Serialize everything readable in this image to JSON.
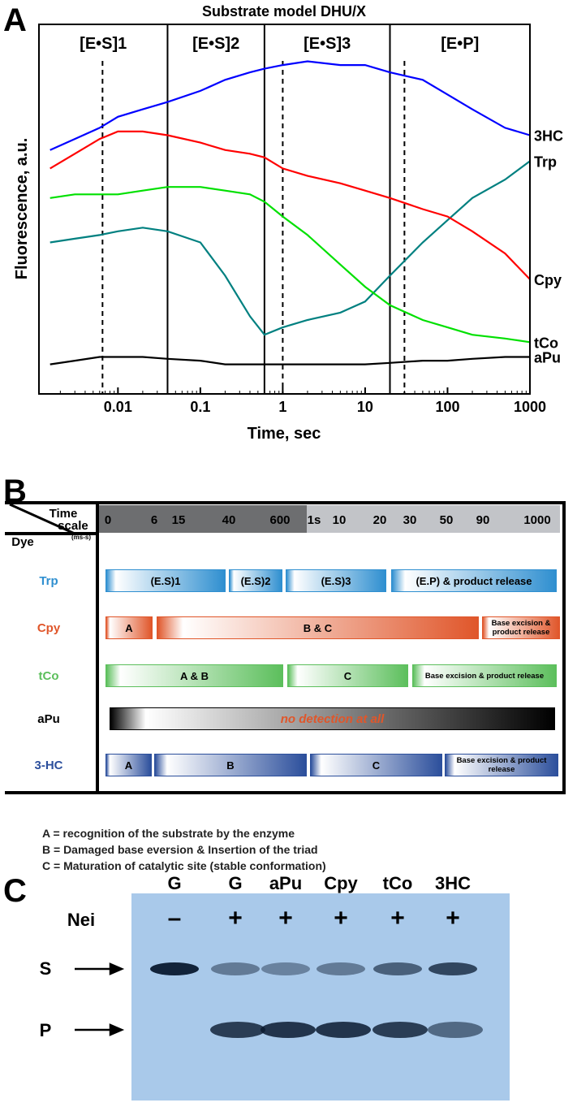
{
  "chart_data": {
    "type": "line",
    "panel": "A",
    "title": "Substrate model DHU/X",
    "xlabel": "Time, sec",
    "ylabel": "Fluorescence, a.u.",
    "xscale": "log",
    "xlim": [
      0.0011,
      1000
    ],
    "xticks": [
      0.01,
      0.1,
      1,
      10,
      100,
      1000
    ],
    "ylim": [
      0,
      100
    ],
    "x": [
      0.0015,
      0.003,
      0.006,
      0.01,
      0.02,
      0.04,
      0.1,
      0.2,
      0.4,
      0.6,
      1,
      2,
      5,
      10,
      20,
      50,
      100,
      200,
      500,
      1000
    ],
    "series": [
      {
        "name": "3HC",
        "color": "#0000ff",
        "values": [
          66,
          69,
          72,
          75,
          77,
          79,
          82,
          85,
          87,
          88,
          89,
          90,
          89,
          89,
          87,
          85,
          81,
          77,
          72,
          70
        ]
      },
      {
        "name": "Trp",
        "color": "#008080",
        "values": [
          41,
          42,
          43,
          44,
          45,
          44,
          41,
          32,
          21,
          16,
          18,
          20,
          22,
          25,
          32,
          41,
          47,
          53,
          58,
          63
        ]
      },
      {
        "name": "Cpy",
        "color": "#ff0000",
        "values": [
          61,
          65,
          69,
          71,
          71,
          70,
          68,
          66,
          65,
          64,
          61,
          59,
          57,
          55,
          53,
          50,
          48,
          44,
          38,
          31
        ]
      },
      {
        "name": "tCo",
        "color": "#00e000",
        "values": [
          53,
          54,
          54,
          54,
          55,
          56,
          56,
          55,
          54,
          52,
          48,
          43,
          35,
          29,
          24,
          20,
          18,
          16,
          15,
          14
        ]
      },
      {
        "name": "aPu",
        "color": "#000000",
        "values": [
          8,
          9,
          10,
          10,
          10,
          9.5,
          9,
          8,
          8,
          8,
          8,
          8,
          8,
          8,
          8.4,
          9,
          9,
          9.5,
          10,
          10
        ]
      }
    ],
    "phases": [
      "[E•S]1",
      "[E•S]2",
      "[E•S]3",
      "[E•P]"
    ],
    "phase_boundaries": [
      0.04,
      0.6,
      20
    ],
    "phase_markers": [
      0.0065,
      1,
      30
    ]
  },
  "panel_b": {
    "label": "B",
    "header": {
      "time": "Time",
      "scale": "scale",
      "unit": "(ms-s)",
      "dye": "Dye"
    },
    "timescale": [
      "0",
      "6",
      "15",
      "40",
      "600",
      "1s",
      "10",
      "20",
      "30",
      "50",
      "90",
      "1000"
    ],
    "rows": [
      {
        "dye": "Trp",
        "color": "#2f8fd0",
        "stages": [
          "(E.S)1",
          "(E.S)2",
          "(E.S)3",
          "(E.P) & product release"
        ]
      },
      {
        "dye": "Cpy",
        "color": "#e0562a",
        "stages": [
          "A",
          "B & C",
          "Base excision & product release"
        ]
      },
      {
        "dye": "tCo",
        "color": "#5cbf5c",
        "stages": [
          "A & B",
          "C",
          "Base excision & product release"
        ]
      },
      {
        "dye": "aPu",
        "color": "#000000",
        "stages": [
          "no detection at all"
        ]
      },
      {
        "dye": "3-HC",
        "color": "#2c4f9c",
        "stages": [
          "A",
          "B",
          "C",
          "Base excision & product release"
        ]
      }
    ],
    "notes": [
      "A = recognition of the substrate by the enzyme",
      "B = Damaged base eversion & Insertion of the triad",
      "C = Maturation of catalytic site (stable conformation)"
    ]
  },
  "panel_c": {
    "label": "C",
    "lanes": [
      "G",
      "G",
      "aPu",
      "Cpy",
      "tCo",
      "3HC"
    ],
    "enzyme": "Nei",
    "treatment": [
      "–",
      "+",
      "+",
      "+",
      "+",
      "+"
    ],
    "bands": [
      "S",
      "P"
    ]
  }
}
